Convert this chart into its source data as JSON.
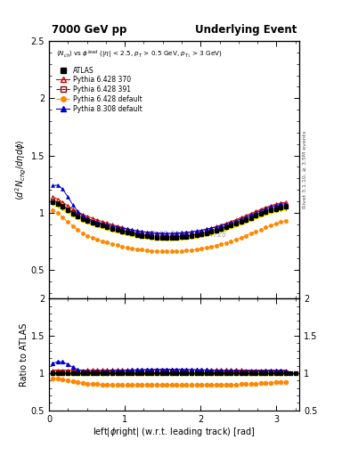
{
  "title_left": "7000 GeV pp",
  "title_right": "Underlying Event",
  "ylabel_main": "$\\langle d^2 N_{chg}/d\\eta d\\phi\\rangle$",
  "ylabel_ratio": "Ratio to ATLAS",
  "xlabel": "left|$\\phi$right| (w.r.t. leading track) [rad]",
  "annotation": "$\\langle N_{ch}\\rangle$ vs $\\phi^{lead}$ (|$\\eta$| < 2.5, $p_T$ > 0.5 GeV, $p_{T_1}$ > 3 GeV)",
  "watermark": "ATLAS_2010_S8894728",
  "rivet_label": "Rivet 3.1.10, ≥ 3.5M events",
  "xlim": [
    0,
    3.3
  ],
  "ylim_main": [
    0.25,
    2.5
  ],
  "ylim_ratio": [
    0.5,
    2.0
  ],
  "yticks_main": [
    0.5,
    1.0,
    1.5,
    2.0,
    2.5
  ],
  "yticks_ratio": [
    0.5,
    1.0,
    1.5,
    2.0
  ],
  "xticks": [
    0,
    1,
    2,
    3
  ],
  "bg_color": "#ffffff",
  "atlas_color": "#000000",
  "p6428_370_color": "#cc0000",
  "p6428_391_color": "#880000",
  "p6428_def_color": "#ff8800",
  "p8308_def_color": "#0000cc",
  "atlas_band_color": "#ffff00",
  "p6428_391_band_color": "#aaaaaa",
  "legend_entries": [
    "ATLAS",
    "Pythia 6.428 370",
    "Pythia 6.428 391",
    "Pythia 6.428 default",
    "Pythia 8.308 default"
  ]
}
